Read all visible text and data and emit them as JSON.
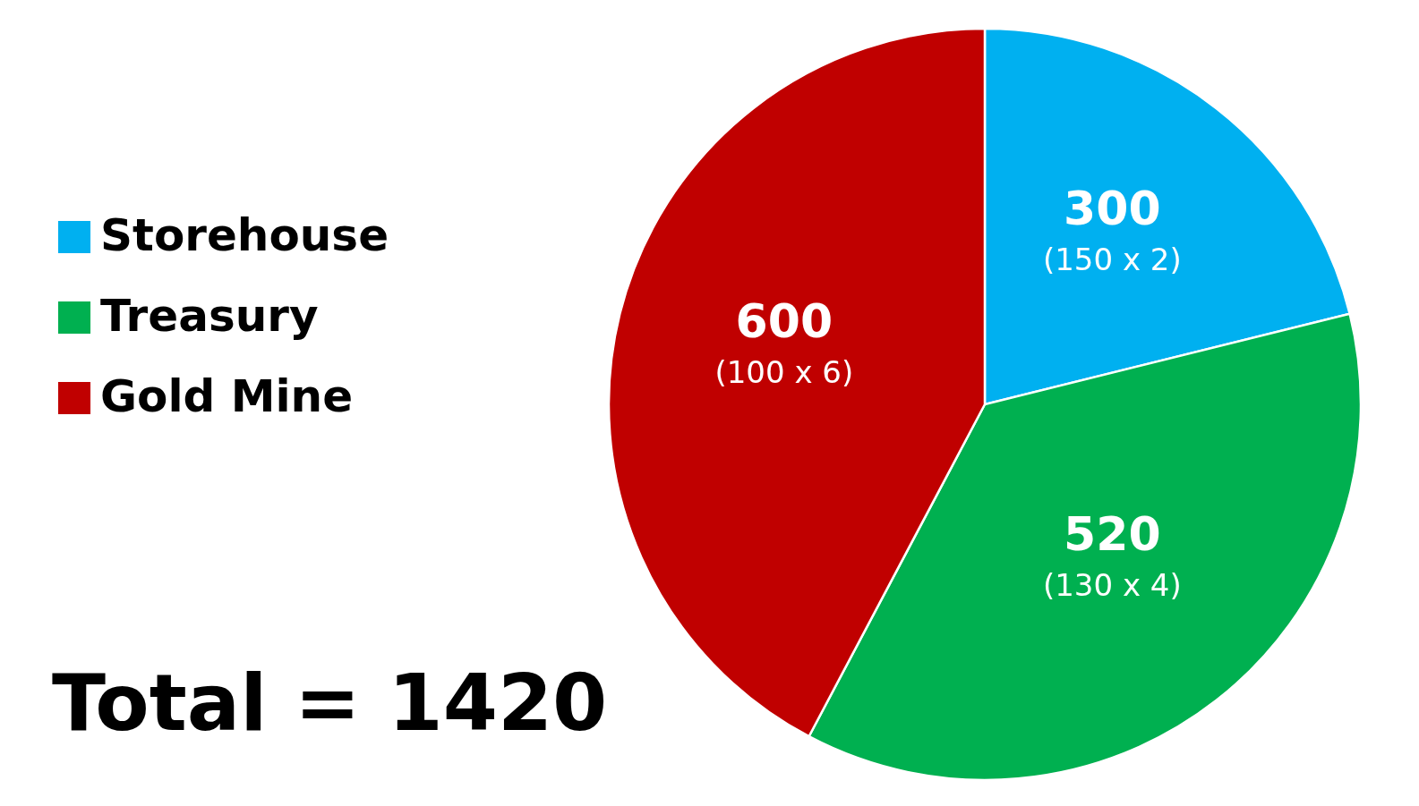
{
  "chart_data": {
    "type": "pie",
    "categories": [
      "Storehouse",
      "Treasury",
      "Gold Mine"
    ],
    "values": [
      300,
      520,
      600
    ],
    "colors": [
      "#00b0f0",
      "#00b050",
      "#c00000"
    ],
    "data_labels": true,
    "legend": "left",
    "annotations": [
      {
        "text": "(150 x 2)",
        "x": "Storehouse"
      },
      {
        "text": "(130 x 4)",
        "x": "Treasury"
      },
      {
        "text": "(100 x 6)",
        "x": "Gold Mine"
      },
      "Total = 1420"
    ]
  }
}
